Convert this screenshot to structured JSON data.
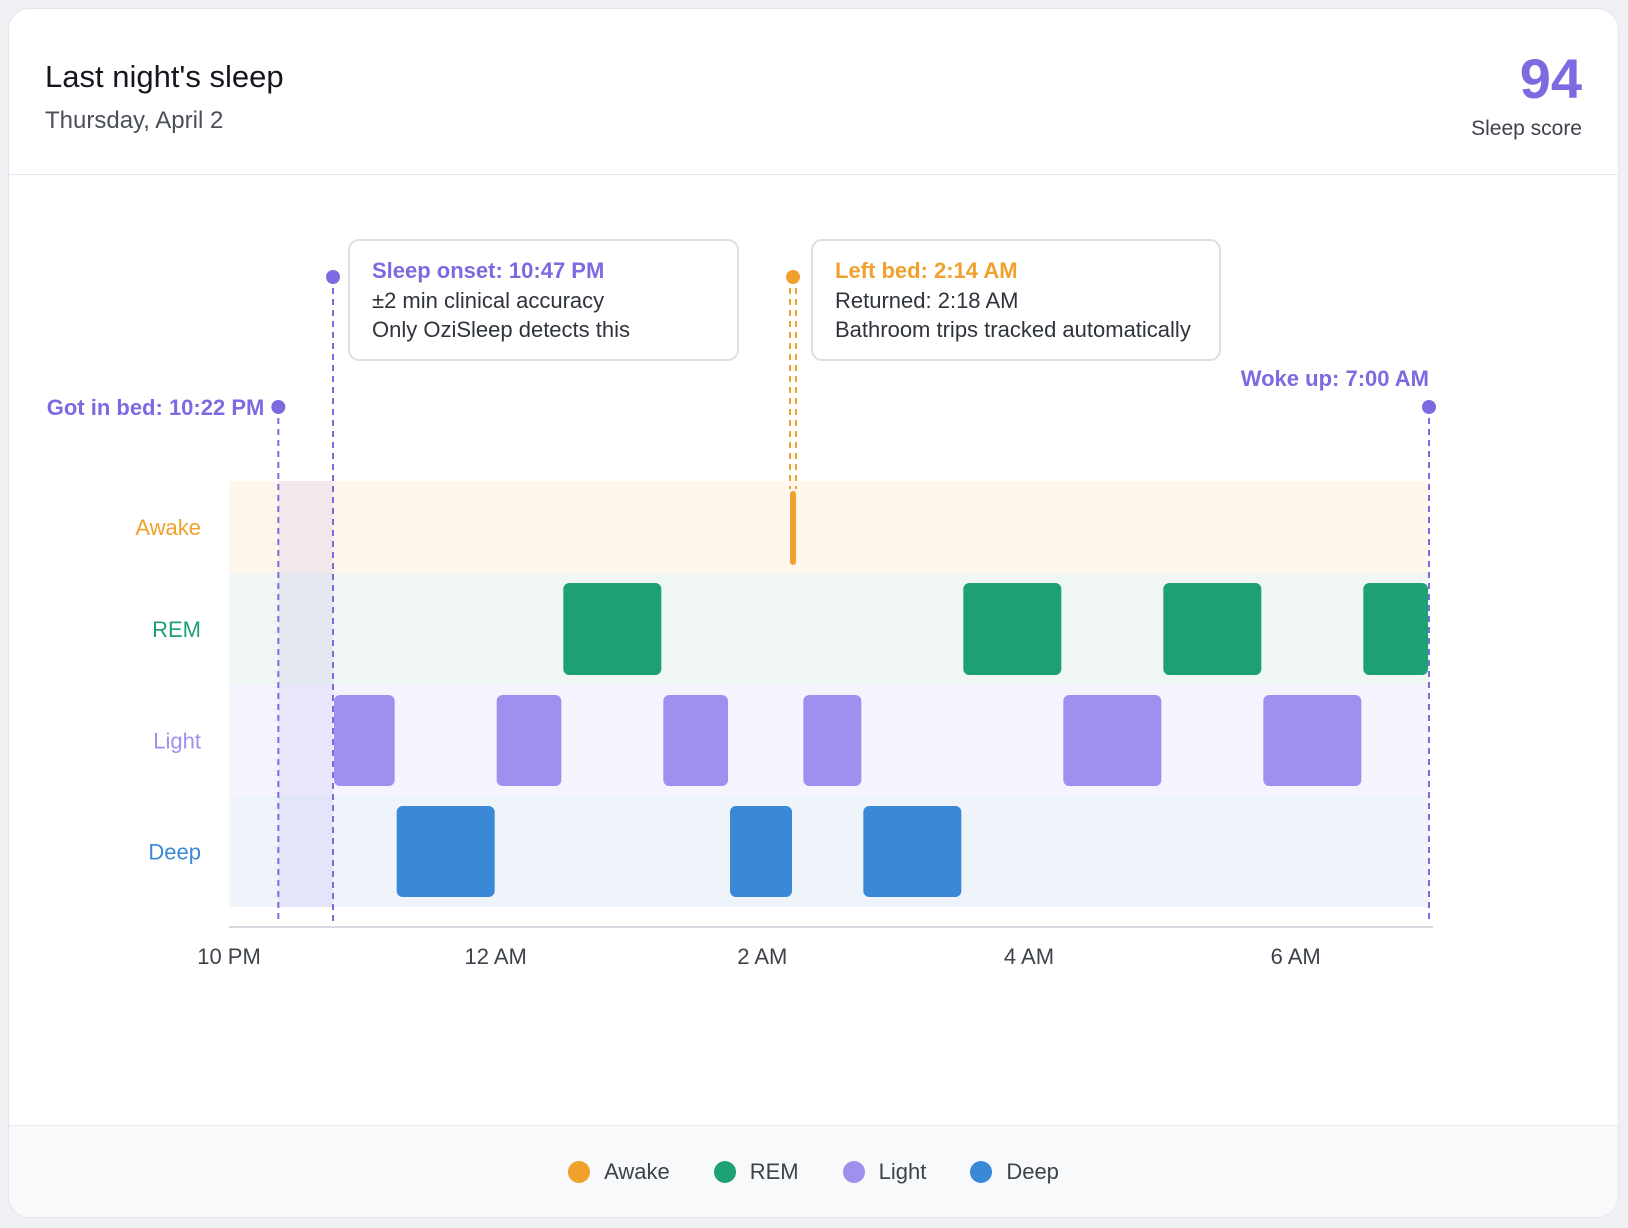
{
  "header": {
    "title": "Last night's sleep",
    "date": "Thursday, April 2",
    "score_value": "94",
    "score_label": "Sleep score"
  },
  "colors": {
    "awake": "#f0a02c",
    "rem": "#1ea172",
    "light": "#a18fef",
    "deep": "#3a88d6",
    "accent": "#7d6ae0"
  },
  "chart_data": {
    "type": "timeline",
    "x_ticks": [
      "10 PM",
      "12 AM",
      "2 AM",
      "4 AM",
      "6 AM"
    ],
    "x_range_hours": [
      22,
      31
    ],
    "stages": [
      "Awake",
      "REM",
      "Light",
      "Deep"
    ],
    "segments": [
      {
        "stage": "Light",
        "start": 22.78,
        "end": 23.25
      },
      {
        "stage": "Deep",
        "start": 23.25,
        "end": 24.0
      },
      {
        "stage": "Light",
        "start": 24.0,
        "end": 24.5
      },
      {
        "stage": "REM",
        "start": 24.5,
        "end": 25.25
      },
      {
        "stage": "Light",
        "start": 25.25,
        "end": 25.75
      },
      {
        "stage": "Deep",
        "start": 25.75,
        "end": 26.23
      },
      {
        "stage": "Awake",
        "start": 26.23,
        "end": 26.3
      },
      {
        "stage": "Light",
        "start": 26.3,
        "end": 26.75
      },
      {
        "stage": "Deep",
        "start": 26.75,
        "end": 27.5
      },
      {
        "stage": "REM",
        "start": 27.5,
        "end": 28.25
      },
      {
        "stage": "Light",
        "start": 28.25,
        "end": 29.0
      },
      {
        "stage": "REM",
        "start": 29.0,
        "end": 29.75
      },
      {
        "stage": "Light",
        "start": 29.75,
        "end": 30.5
      },
      {
        "stage": "REM",
        "start": 30.5,
        "end": 31.0
      }
    ],
    "events": [
      {
        "id": "in-bed",
        "time": 22.37,
        "label": "Got in bed: 10:22 PM"
      },
      {
        "id": "onset",
        "time": 22.78,
        "title": "Sleep onset: 10:47 PM",
        "lines": [
          "±2 min clinical accuracy",
          "Only OziSleep detects this"
        ]
      },
      {
        "id": "left-bed",
        "time": 26.23,
        "title": "Left bed: 2:14 AM",
        "lines": [
          "Returned: 2:18 AM",
          "Bathroom trips tracked automatically"
        ]
      },
      {
        "id": "woke-up",
        "time": 31.0,
        "label": "Woke up: 7:00 AM"
      }
    ]
  },
  "legend": [
    {
      "label": "Awake",
      "color": "#f0a02c"
    },
    {
      "label": "REM",
      "color": "#1ea172"
    },
    {
      "label": "Light",
      "color": "#a18fef"
    },
    {
      "label": "Deep",
      "color": "#3a88d6"
    }
  ]
}
